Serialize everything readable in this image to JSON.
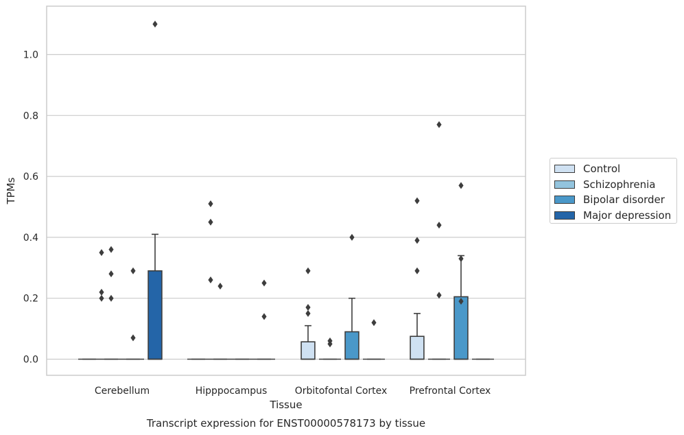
{
  "chart_data": {
    "type": "box",
    "title": "Transcript expression for ENST00000578173 by tissue",
    "xlabel": "Tissue",
    "ylabel": "TPMs",
    "ylim": [
      -0.055,
      1.16
    ],
    "yticks": [
      "0.0",
      "0.2",
      "0.4",
      "0.6",
      "0.8",
      "1.0"
    ],
    "ytick_values": [
      0.0,
      0.2,
      0.4,
      0.6,
      0.8,
      1.0
    ],
    "grid": true,
    "legend_position": "right",
    "categories": [
      "Cerebellum",
      "Hipppocampus",
      "Orbitofontal Cortex",
      "Prefrontal Cortex"
    ],
    "series": [
      {
        "name": "Control",
        "color": "#cfe1f2",
        "boxes": [
          {
            "q1": 0,
            "median": 0,
            "q3": 0,
            "whisker_low": 0,
            "whisker_high": 0,
            "outliers": []
          },
          {
            "q1": 0,
            "median": 0,
            "q3": 0,
            "whisker_low": 0,
            "whisker_high": 0,
            "outliers": []
          },
          {
            "q1": 0,
            "median": 0,
            "q3": 0.057,
            "whisker_low": 0,
            "whisker_high": 0.11,
            "outliers": [
              0.29,
              0.17,
              0.15
            ]
          },
          {
            "q1": 0,
            "median": 0,
            "q3": 0.075,
            "whisker_low": 0,
            "whisker_high": 0.15,
            "outliers": [
              0.52,
              0.39,
              0.29
            ]
          }
        ]
      },
      {
        "name": "Schizophrenia",
        "color": "#93c4de",
        "boxes": [
          {
            "q1": 0,
            "median": 0,
            "q3": 0,
            "whisker_low": 0,
            "whisker_high": 0,
            "outliers": [
              0.36,
              0.28,
              0.2
            ]
          },
          {
            "q1": 0,
            "median": 0,
            "q3": 0,
            "whisker_low": 0,
            "whisker_high": 0,
            "outliers": [
              0.24
            ]
          },
          {
            "q1": 0,
            "median": 0,
            "q3": 0,
            "whisker_low": 0,
            "whisker_high": 0,
            "outliers": [
              0.06,
              0.05
            ]
          },
          {
            "q1": 0,
            "median": 0,
            "q3": 0,
            "whisker_low": 0,
            "whisker_high": 0,
            "outliers": [
              0.77,
              0.44,
              0.21
            ]
          }
        ]
      },
      {
        "name": "Bipolar disorder",
        "color": "#4a98c9",
        "boxes": [
          {
            "q1": 0,
            "median": 0,
            "q3": 0,
            "whisker_low": 0,
            "whisker_high": 0,
            "outliers": [
              0.29,
              0.07
            ]
          },
          {
            "q1": 0,
            "median": 0,
            "q3": 0,
            "whisker_low": 0,
            "whisker_high": 0,
            "outliers": []
          },
          {
            "q1": 0,
            "median": 0,
            "q3": 0.09,
            "whisker_low": 0,
            "whisker_high": 0.2,
            "outliers": [
              0.4
            ]
          },
          {
            "q1": 0,
            "median": 0,
            "q3": 0.205,
            "whisker_low": 0,
            "whisker_high": 0.34,
            "outliers": [
              0.57,
              0.33,
              0.19
            ]
          }
        ]
      },
      {
        "name": "Major depression",
        "color": "#2465a8",
        "boxes": [
          {
            "q1": 0,
            "median": 0,
            "q3": 0.29,
            "whisker_low": 0,
            "whisker_high": 0.41,
            "outliers": [
              1.1
            ]
          },
          {
            "q1": 0,
            "median": 0,
            "q3": 0,
            "whisker_low": 0,
            "whisker_high": 0,
            "outliers": [
              0.25,
              0.14
            ]
          },
          {
            "q1": 0,
            "median": 0,
            "q3": 0,
            "whisker_low": 0,
            "whisker_high": 0,
            "outliers": [
              0.12
            ]
          },
          {
            "q1": 0,
            "median": 0,
            "q3": 0,
            "whisker_low": 0,
            "whisker_high": 0,
            "outliers": []
          }
        ]
      }
    ],
    "extra_points": [
      {
        "category": 0,
        "side": "left",
        "values": [
          0.35,
          0.22,
          0.2
        ]
      },
      {
        "category": 1,
        "side": "left",
        "values": [
          0.51,
          0.45,
          0.26
        ]
      }
    ]
  }
}
